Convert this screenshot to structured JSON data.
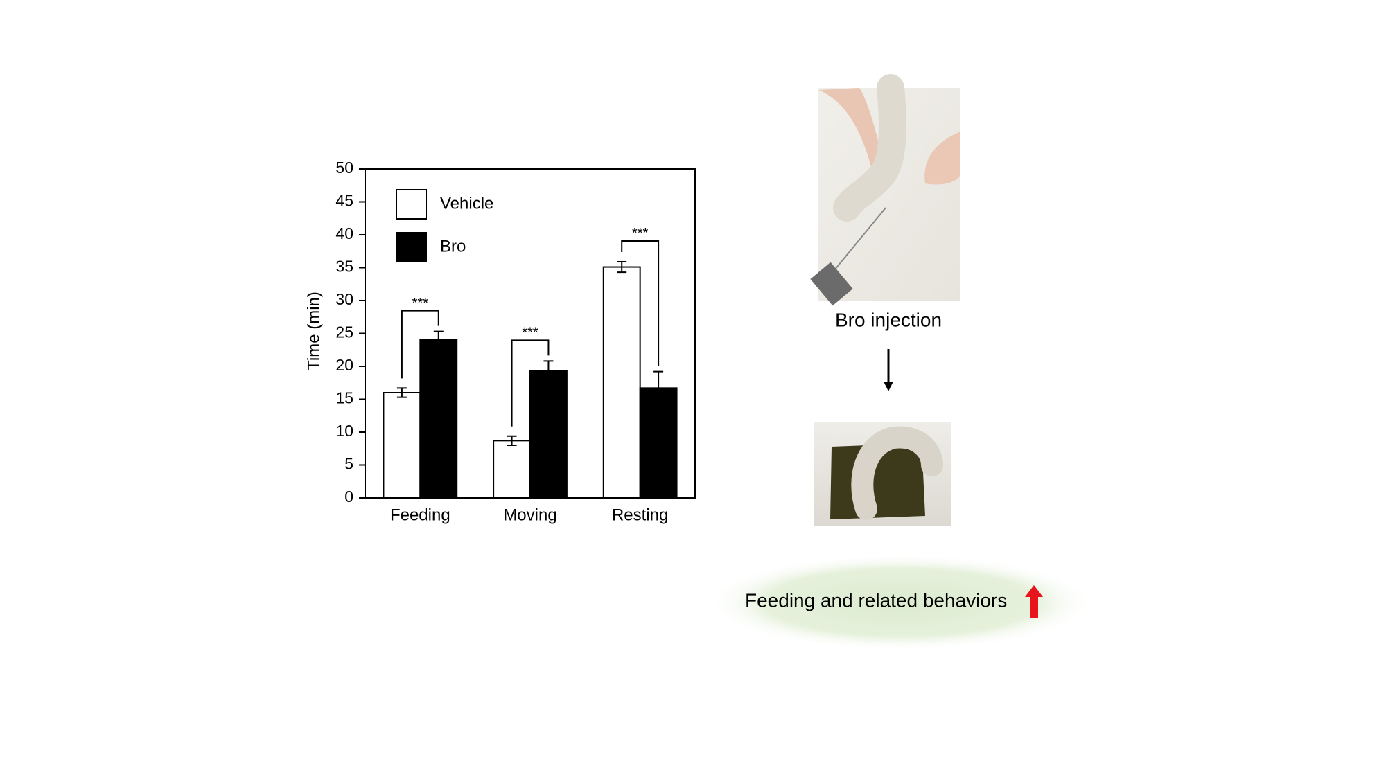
{
  "chart_data": {
    "type": "bar",
    "ylabel": "Time (min)",
    "categories": [
      "Feeding",
      "Moving",
      "Resting"
    ],
    "series": [
      {
        "name": "Vehicle",
        "color": "#ffffff",
        "values": [
          16,
          8.7,
          35.1
        ],
        "errors": [
          0.7,
          0.7,
          0.8
        ]
      },
      {
        "name": "Bro",
        "color": "#000000",
        "values": [
          24,
          19.3,
          16.7
        ],
        "errors": [
          1.3,
          1.5,
          2.5
        ]
      }
    ],
    "significance": [
      "***",
      "***",
      "***"
    ],
    "ylim": [
      0,
      50
    ],
    "yticks": [
      0,
      5,
      10,
      15,
      20,
      25,
      30,
      35,
      40,
      45,
      50
    ],
    "grid": false,
    "legend": "upper left"
  },
  "panel": {
    "photo_caption": "Bro injection",
    "outcome": "Feeding and related behaviors"
  }
}
